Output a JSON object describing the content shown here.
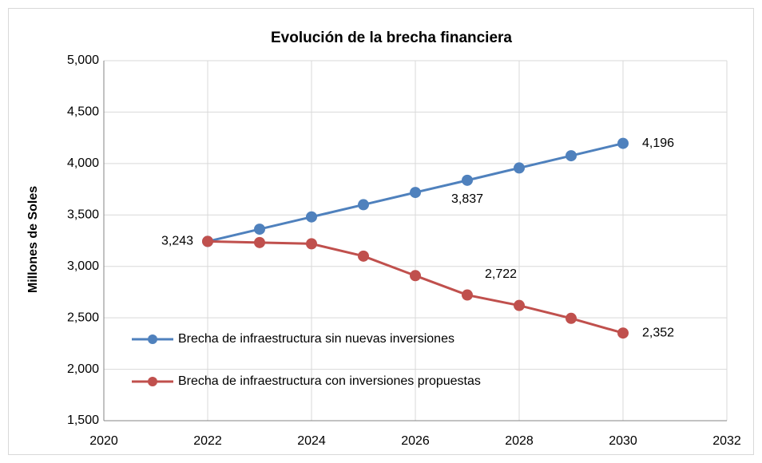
{
  "chart_data": {
    "type": "line",
    "title": "Evolución de la brecha financiera",
    "y_label": "Millones de Soles",
    "x": [
      2022,
      2023,
      2024,
      2025,
      2026,
      2027,
      2028,
      2029,
      2030
    ],
    "series": [
      {
        "name": "Brecha de infraestructura sin nuevas inversiones",
        "color": "#4f81bd",
        "values": [
          3243,
          3362,
          3481,
          3600,
          3719,
          3837,
          3957,
          4076,
          4196
        ],
        "value_labels": [
          "3,243",
          null,
          null,
          null,
          null,
          "3,837",
          null,
          null,
          "4,196"
        ]
      },
      {
        "name": "Brecha de infraestructura con inversiones propuestas",
        "color": "#c0504d",
        "values": [
          3243,
          3232,
          3220,
          3100,
          2910,
          2722,
          2620,
          2495,
          2352
        ],
        "value_labels": [
          null,
          null,
          null,
          null,
          null,
          "2,722",
          null,
          null,
          "2,352"
        ]
      }
    ],
    "xlim": [
      2020,
      2032
    ],
    "xticks": [
      2020,
      2022,
      2024,
      2026,
      2028,
      2030,
      2032
    ],
    "ylim": [
      1500,
      5000
    ],
    "yticks": [
      {
        "value": 1500,
        "label": "1,500"
      },
      {
        "value": 2000,
        "label": "2,000"
      },
      {
        "value": 2500,
        "label": "2,500"
      },
      {
        "value": 3000,
        "label": "3,000"
      },
      {
        "value": 3500,
        "label": "3,500"
      },
      {
        "value": 4000,
        "label": "4,000"
      },
      {
        "value": 4500,
        "label": "4,500"
      },
      {
        "value": 5000,
        "label": "5,000"
      }
    ],
    "grid": true,
    "legend": "lower left"
  }
}
